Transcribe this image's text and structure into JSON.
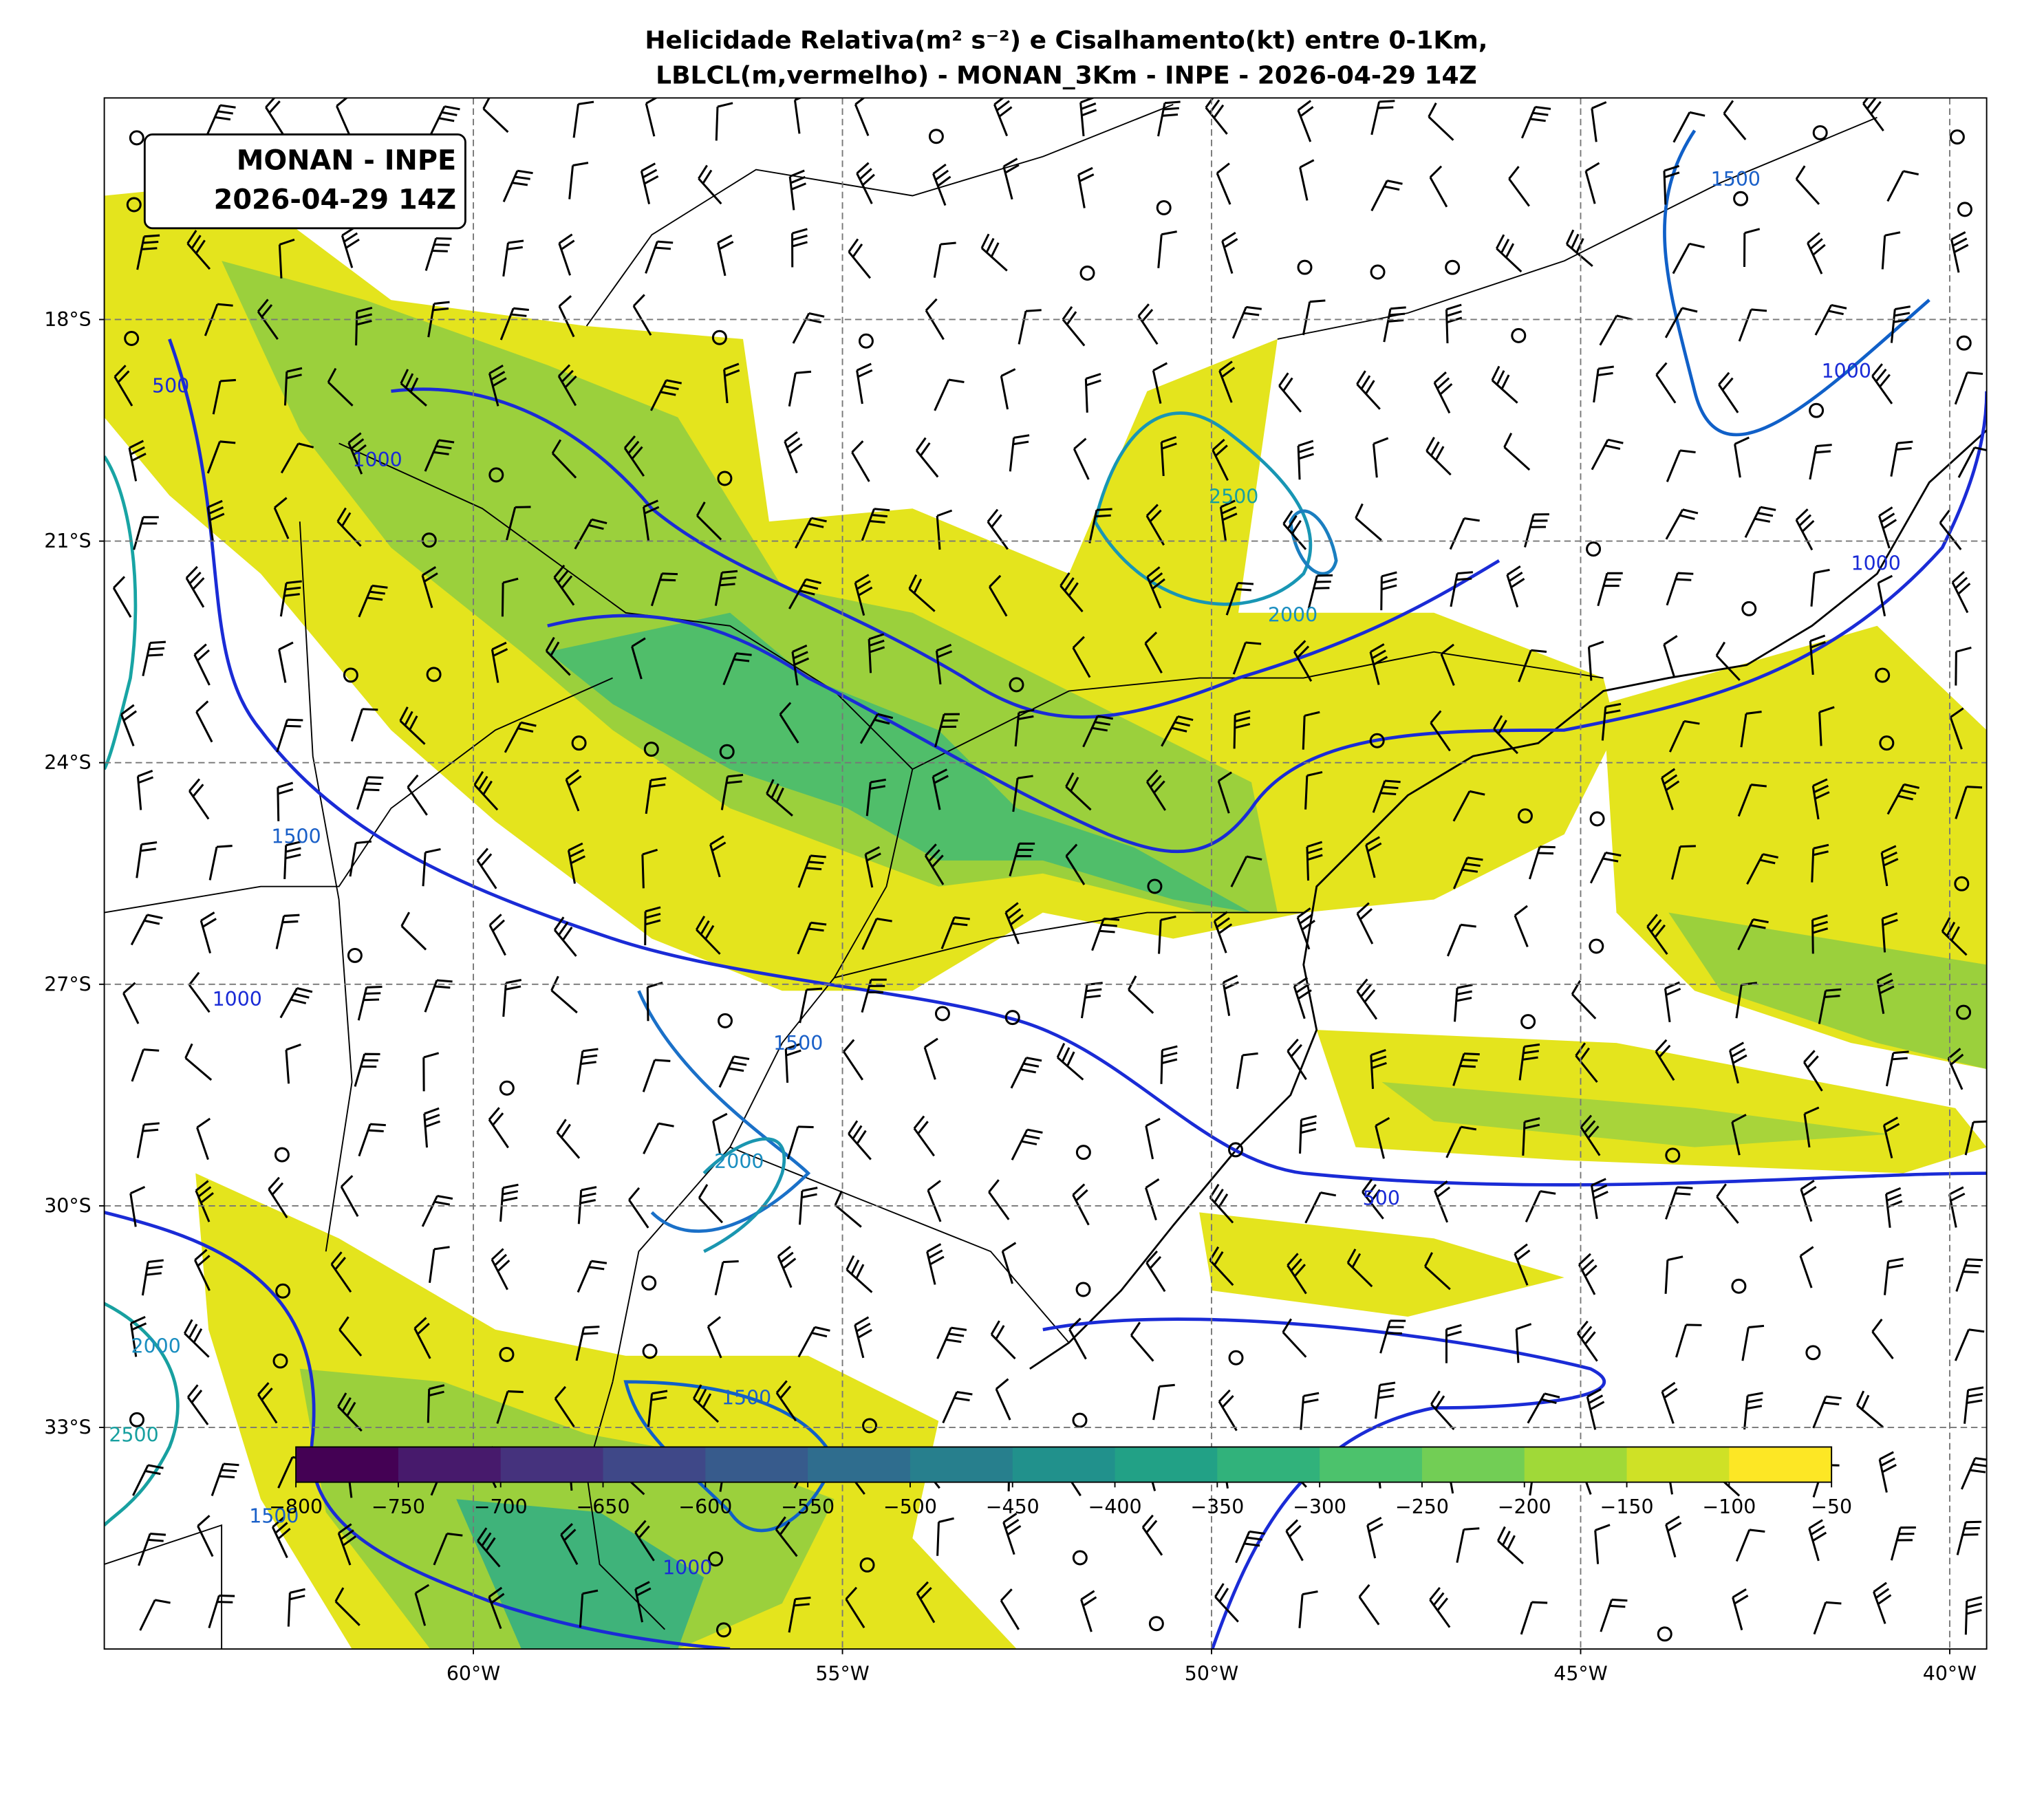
{
  "chart_data": {
    "type": "map",
    "title": [
      "Helicidade Relativa(m² s⁻²) e Cisalhamento(kt) entre 0-1Km,",
      "LBLCL(m,vermelho) - MONAN_3Km - INPE - 2026-04-29 14Z"
    ],
    "annotation": [
      "MONAN - INPE",
      "2026-04-29 14Z"
    ],
    "xlim": [
      -65,
      -39.5
    ],
    "ylim": [
      -36,
      -15
    ],
    "xticks": [
      {
        "value": -60,
        "label": "60°W"
      },
      {
        "value": -55,
        "label": "55°W"
      },
      {
        "value": -50,
        "label": "50°W"
      },
      {
        "value": -45,
        "label": "45°W"
      },
      {
        "value": -40,
        "label": "40°W"
      }
    ],
    "yticks": [
      {
        "value": -18,
        "label": "18°S"
      },
      {
        "value": -21,
        "label": "21°S"
      },
      {
        "value": -24,
        "label": "24°S"
      },
      {
        "value": -27,
        "label": "27°S"
      },
      {
        "value": -30,
        "label": "30°S"
      },
      {
        "value": -33,
        "label": "33°S"
      }
    ],
    "grid": true,
    "colormap": "viridis",
    "colorbar": {
      "lim": [
        -800,
        -50
      ],
      "ticks": [
        {
          "value": -800,
          "label": "−800"
        },
        {
          "value": -750,
          "label": "−750"
        },
        {
          "value": -700,
          "label": "−700"
        },
        {
          "value": -650,
          "label": "−650"
        },
        {
          "value": -600,
          "label": "−600"
        },
        {
          "value": -550,
          "label": "−550"
        },
        {
          "value": -500,
          "label": "−500"
        },
        {
          "value": -450,
          "label": "−450"
        },
        {
          "value": -400,
          "label": "−400"
        },
        {
          "value": -350,
          "label": "−350"
        },
        {
          "value": -300,
          "label": "−300"
        },
        {
          "value": -250,
          "label": "−250"
        },
        {
          "value": -200,
          "label": "−200"
        },
        {
          "value": -150,
          "label": "−150"
        },
        {
          "value": -100,
          "label": "−100"
        },
        {
          "value": -50,
          "label": "−50"
        }
      ]
    },
    "contour_labels": [
      {
        "value": 1500,
        "lon": -42.9,
        "lat": -16.1
      },
      {
        "value": 1000,
        "lon": -41.4,
        "lat": -18.7
      },
      {
        "value": 2500,
        "lon": -49.7,
        "lat": -20.4
      },
      {
        "value": 2000,
        "lon": -48.9,
        "lat": -22.0
      },
      {
        "value": 1000,
        "lon": -41.0,
        "lat": -21.3
      },
      {
        "value": 500,
        "lon": -64.1,
        "lat": -18.9
      },
      {
        "value": 1000,
        "lon": -61.3,
        "lat": -19.9
      },
      {
        "value": 1500,
        "lon": -62.4,
        "lat": -25.0
      },
      {
        "value": 1000,
        "lon": -63.2,
        "lat": -27.2
      },
      {
        "value": 1500,
        "lon": -55.6,
        "lat": -27.8
      },
      {
        "value": 2000,
        "lon": -56.4,
        "lat": -29.4
      },
      {
        "value": 500,
        "lon": -47.7,
        "lat": -29.9
      },
      {
        "value": 2000,
        "lon": -64.3,
        "lat": -31.9
      },
      {
        "value": 1500,
        "lon": -56.3,
        "lat": -32.6
      },
      {
        "value": 2500,
        "lon": -64.6,
        "lat": -33.1
      },
      {
        "value": 1500,
        "lon": -62.7,
        "lat": -34.2
      },
      {
        "value": 1000,
        "lon": -57.1,
        "lat": -34.9
      }
    ]
  }
}
